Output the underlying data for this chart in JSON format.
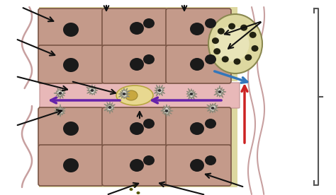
{
  "bg_color": "#ffffff",
  "hepatocyte_color": "#c49a8a",
  "hepatocyte_border": "#7a5545",
  "space_color": "#ddd8a0",
  "nucleus_color": "#1a1a1a",
  "sinusoid_color": "#e8b8b8",
  "sinusoid_border": "#c09090",
  "arrow_black": "#111111",
  "arrow_blue": "#3377bb",
  "arrow_red": "#cc2222",
  "arrow_purple": "#6622aa",
  "bracket_color": "#555555",
  "kupffer_color": "#ddd8a0",
  "kupffer_border": "#8a8850",
  "vessel_color": "#c8a0a0",
  "stellate_color": "#e0e0d8",
  "stellate_border": "#888878",
  "kupffer_nucleus_color": "#c8b870"
}
